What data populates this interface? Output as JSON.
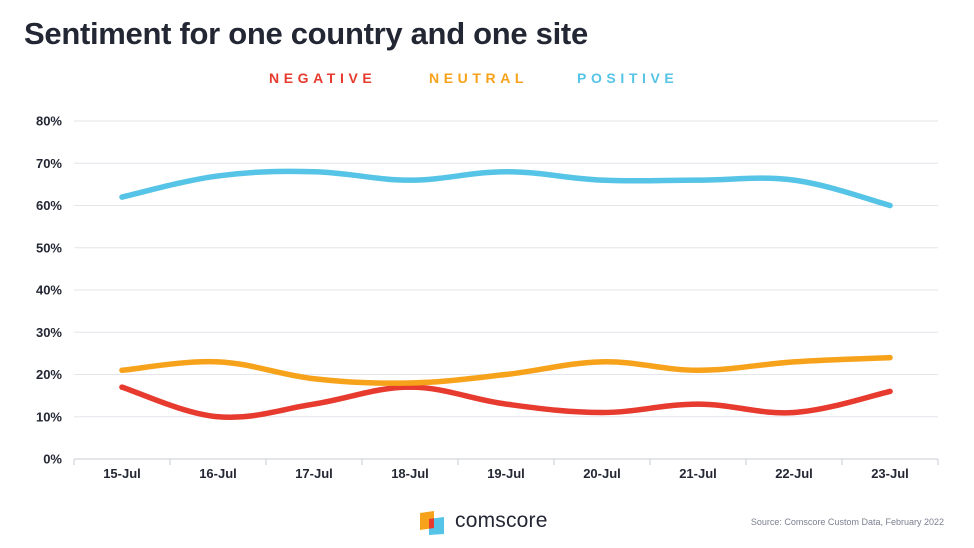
{
  "title": "Sentiment for one country and one site",
  "brand": "comscore",
  "source": "Source: Comscore Custom Data, February 2022",
  "chart_data": {
    "type": "line",
    "categories": [
      "15-Jul",
      "16-Jul",
      "17-Jul",
      "18-Jul",
      "19-Jul",
      "20-Jul",
      "21-Jul",
      "22-Jul",
      "23-Jul"
    ],
    "series": [
      {
        "name": "NEGATIVE",
        "color": "#e63b2e",
        "values": [
          17,
          10,
          13,
          17,
          13,
          11,
          13,
          11,
          16
        ]
      },
      {
        "name": "NEUTRAL",
        "color": "#f7a21b",
        "values": [
          21,
          23,
          19,
          18,
          20,
          23,
          21,
          23,
          24
        ]
      },
      {
        "name": "POSITIVE",
        "color": "#56c4e6",
        "values": [
          62,
          67,
          68,
          66,
          68,
          66,
          66,
          66,
          60
        ]
      }
    ],
    "y_ticks": [
      "0%",
      "10%",
      "20%",
      "30%",
      "40%",
      "50%",
      "60%",
      "70%",
      "80%"
    ],
    "ylim": [
      0,
      80
    ],
    "grid": true,
    "legend_position": "top-center"
  }
}
